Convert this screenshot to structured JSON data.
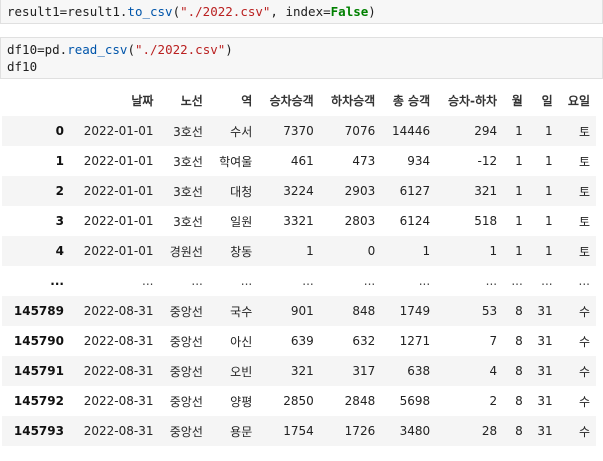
{
  "cell1": {
    "code_prefix": "result1=result1.",
    "code_fn": "to_csv",
    "code_paren_open": "(",
    "code_str": "\"./2022.csv\"",
    "code_mid": ", index=",
    "code_kw": "False",
    "code_close": ")"
  },
  "cell2": {
    "line1_prefix": "df10=pd.",
    "line1_fn": "read_csv",
    "line1_open": "(",
    "line1_str": "\"./2022.csv\"",
    "line1_close": ")",
    "line2": "df10"
  },
  "table": {
    "headers": [
      "",
      "날짜",
      "노선",
      "역",
      "승차승객",
      "하차승객",
      "총 승객",
      "승차-하차",
      "월",
      "일",
      "요일"
    ],
    "rows": [
      [
        "0",
        "2022-01-01",
        "3호선",
        "수서",
        "7370",
        "7076",
        "14446",
        "294",
        "1",
        "1",
        "토"
      ],
      [
        "1",
        "2022-01-01",
        "3호선",
        "학여울",
        "461",
        "473",
        "934",
        "-12",
        "1",
        "1",
        "토"
      ],
      [
        "2",
        "2022-01-01",
        "3호선",
        "대청",
        "3224",
        "2903",
        "6127",
        "321",
        "1",
        "1",
        "토"
      ],
      [
        "3",
        "2022-01-01",
        "3호선",
        "일원",
        "3321",
        "2803",
        "6124",
        "518",
        "1",
        "1",
        "토"
      ],
      [
        "4",
        "2022-01-01",
        "경원선",
        "창동",
        "1",
        "0",
        "1",
        "1",
        "1",
        "1",
        "토"
      ],
      [
        "...",
        "...",
        "...",
        "...",
        "...",
        "...",
        "...",
        "...",
        "...",
        "...",
        "..."
      ],
      [
        "145789",
        "2022-08-31",
        "중앙선",
        "국수",
        "901",
        "848",
        "1749",
        "53",
        "8",
        "31",
        "수"
      ],
      [
        "145790",
        "2022-08-31",
        "중앙선",
        "아신",
        "639",
        "632",
        "1271",
        "7",
        "8",
        "31",
        "수"
      ],
      [
        "145791",
        "2022-08-31",
        "중앙선",
        "오빈",
        "321",
        "317",
        "638",
        "4",
        "8",
        "31",
        "수"
      ],
      [
        "145792",
        "2022-08-31",
        "중앙선",
        "양평",
        "2850",
        "2848",
        "5698",
        "2",
        "8",
        "31",
        "수"
      ],
      [
        "145793",
        "2022-08-31",
        "중앙선",
        "용문",
        "1754",
        "1726",
        "3480",
        "28",
        "8",
        "31",
        "수"
      ]
    ]
  }
}
